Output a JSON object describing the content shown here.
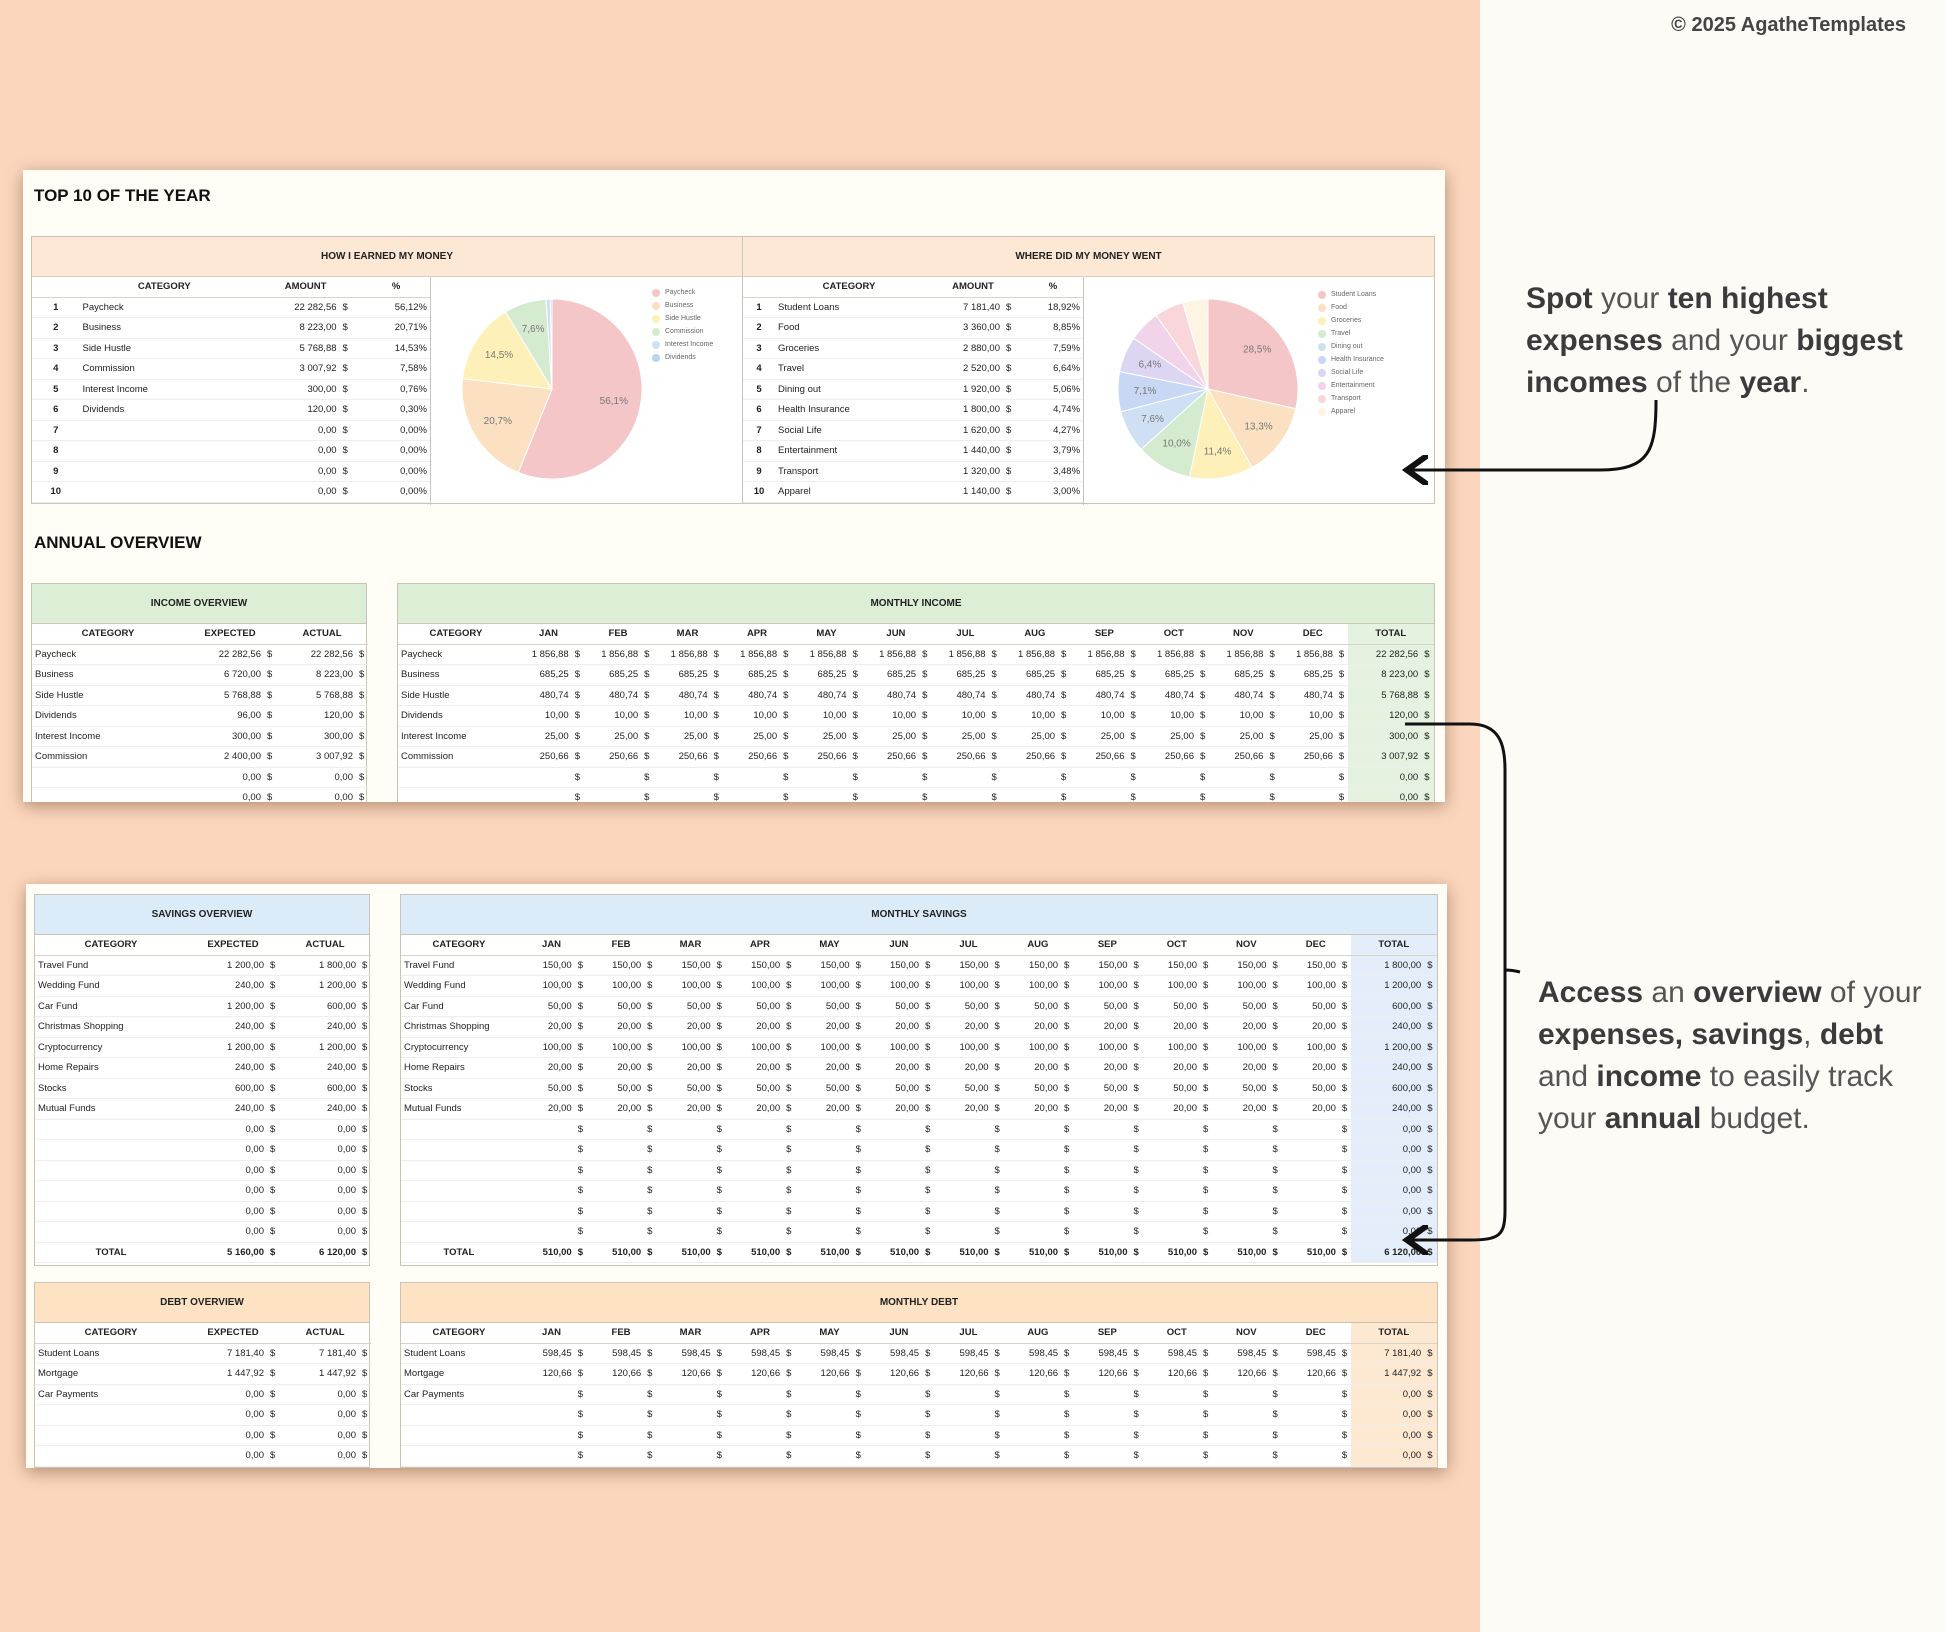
{
  "copyright": "© 2025 AgatheTemplates",
  "colors": {
    "bg_left": "#fbd6bd",
    "income_green": "#dcefd6",
    "savings_blue": "#dcebf8",
    "debt_orange": "#fde3c4",
    "top_orange": "#fde8d6"
  },
  "top10": {
    "title": "TOP 10 OF THE YEAR",
    "earned": {
      "header": "HOW I EARNED MY MONEY",
      "columns": [
        "CATEGORY",
        "AMOUNT",
        "%"
      ],
      "rows": [
        [
          "1",
          "Paycheck",
          "22 282,56",
          "$",
          "56,12%"
        ],
        [
          "2",
          "Business",
          "8 223,00",
          "$",
          "20,71%"
        ],
        [
          "3",
          "Side Hustle",
          "5 768,88",
          "$",
          "14,53%"
        ],
        [
          "4",
          "Commission",
          "3 007,92",
          "$",
          "7,58%"
        ],
        [
          "5",
          "Interest Income",
          "300,00",
          "$",
          "0,76%"
        ],
        [
          "6",
          "Dividends",
          "120,00",
          "$",
          "0,30%"
        ],
        [
          "7",
          "",
          "0,00",
          "$",
          "0,00%"
        ],
        [
          "8",
          "",
          "0,00",
          "$",
          "0,00%"
        ],
        [
          "9",
          "",
          "0,00",
          "$",
          "0,00%"
        ],
        [
          "10",
          "",
          "0,00",
          "$",
          "0,00%"
        ]
      ],
      "pie_labels": [
        "56,1%",
        "20,7%",
        "14,5%",
        "7,6%"
      ],
      "legend": [
        "Paycheck",
        "Business",
        "Side Hustle",
        "Commission",
        "Interest Income",
        "Dividends"
      ]
    },
    "spent": {
      "header": "WHERE DID MY MONEY WENT",
      "columns": [
        "CATEGORY",
        "AMOUNT",
        "%"
      ],
      "rows": [
        [
          "1",
          "Student Loans",
          "7 181,40",
          "$",
          "18,92%"
        ],
        [
          "2",
          "Food",
          "3 360,00",
          "$",
          "8,85%"
        ],
        [
          "3",
          "Groceries",
          "2 880,00",
          "$",
          "7,59%"
        ],
        [
          "4",
          "Travel",
          "2 520,00",
          "$",
          "6,64%"
        ],
        [
          "5",
          "Dining out",
          "1 920,00",
          "$",
          "5,06%"
        ],
        [
          "6",
          "Health Insurance",
          "1 800,00",
          "$",
          "4,74%"
        ],
        [
          "7",
          "Social Life",
          "1 620,00",
          "$",
          "4,27%"
        ],
        [
          "8",
          "Entertainment",
          "1 440,00",
          "$",
          "3,79%"
        ],
        [
          "9",
          "Transport",
          "1 320,00",
          "$",
          "3,48%"
        ],
        [
          "10",
          "Apparel",
          "1 140,00",
          "$",
          "3,00%"
        ]
      ],
      "pie_labels": [
        "28,5%",
        "13,3%",
        "11,4%",
        "10,0%",
        "7,6%",
        "7,1%",
        "6,4%"
      ],
      "legend": [
        "Student Loans",
        "Food",
        "Groceries",
        "Travel",
        "Dining out",
        "Health Insurance",
        "Social Life",
        "Entertainment",
        "Transport",
        "Apparel"
      ]
    }
  },
  "annual": {
    "title": "ANNUAL OVERVIEW",
    "income_overview": {
      "header": "INCOME OVERVIEW",
      "columns": [
        "CATEGORY",
        "EXPECTED",
        "ACTUAL"
      ],
      "rows": [
        [
          "Paycheck",
          "22 282,56",
          "22 282,56"
        ],
        [
          "Business",
          "6 720,00",
          "8 223,00"
        ],
        [
          "Side Hustle",
          "5 768,88",
          "5 768,88"
        ],
        [
          "Dividends",
          "96,00",
          "120,00"
        ],
        [
          "Interest Income",
          "300,00",
          "300,00"
        ],
        [
          "Commission",
          "2 400,00",
          "3 007,92"
        ],
        [
          "",
          "0,00",
          "0,00"
        ],
        [
          "",
          "0,00",
          "0,00"
        ]
      ]
    },
    "monthly_income": {
      "header": "MONTHLY INCOME",
      "columns": [
        "CATEGORY",
        "JAN",
        "FEB",
        "MAR",
        "APR",
        "MAY",
        "JUN",
        "JUL",
        "AUG",
        "SEP",
        "OCT",
        "NOV",
        "DEC",
        "TOTAL"
      ],
      "rows": [
        [
          "Paycheck",
          "1 856,88",
          "1 856,88",
          "1 856,88",
          "1 856,88",
          "1 856,88",
          "1 856,88",
          "1 856,88",
          "1 856,88",
          "1 856,88",
          "1 856,88",
          "1 856,88",
          "1 856,88",
          "22 282,56"
        ],
        [
          "Business",
          "685,25",
          "685,25",
          "685,25",
          "685,25",
          "685,25",
          "685,25",
          "685,25",
          "685,25",
          "685,25",
          "685,25",
          "685,25",
          "685,25",
          "8 223,00"
        ],
        [
          "Side Hustle",
          "480,74",
          "480,74",
          "480,74",
          "480,74",
          "480,74",
          "480,74",
          "480,74",
          "480,74",
          "480,74",
          "480,74",
          "480,74",
          "480,74",
          "5 768,88"
        ],
        [
          "Dividends",
          "10,00",
          "10,00",
          "10,00",
          "10,00",
          "10,00",
          "10,00",
          "10,00",
          "10,00",
          "10,00",
          "10,00",
          "10,00",
          "10,00",
          "120,00"
        ],
        [
          "Interest Income",
          "25,00",
          "25,00",
          "25,00",
          "25,00",
          "25,00",
          "25,00",
          "25,00",
          "25,00",
          "25,00",
          "25,00",
          "25,00",
          "25,00",
          "300,00"
        ],
        [
          "Commission",
          "250,66",
          "250,66",
          "250,66",
          "250,66",
          "250,66",
          "250,66",
          "250,66",
          "250,66",
          "250,66",
          "250,66",
          "250,66",
          "250,66",
          "3 007,92"
        ],
        [
          "",
          "",
          "",
          "",
          "",
          "",
          "",
          "",
          "",
          "",
          "",
          "",
          "",
          "0,00"
        ],
        [
          "",
          "",
          "",
          "",
          "",
          "",
          "",
          "",
          "",
          "",
          "",
          "",
          "",
          "0,00"
        ]
      ]
    },
    "savings_overview": {
      "header": "SAVINGS OVERVIEW",
      "columns": [
        "CATEGORY",
        "EXPECTED",
        "ACTUAL"
      ],
      "rows": [
        [
          "Travel Fund",
          "1 200,00",
          "1 800,00"
        ],
        [
          "Wedding Fund",
          "240,00",
          "1 200,00"
        ],
        [
          "Car Fund",
          "1 200,00",
          "600,00"
        ],
        [
          "Christmas Shopping",
          "240,00",
          "240,00"
        ],
        [
          "Cryptocurrency",
          "1 200,00",
          "1 200,00"
        ],
        [
          "Home Repairs",
          "240,00",
          "240,00"
        ],
        [
          "Stocks",
          "600,00",
          "600,00"
        ],
        [
          "Mutual Funds",
          "240,00",
          "240,00"
        ],
        [
          "",
          "0,00",
          "0,00"
        ],
        [
          "",
          "0,00",
          "0,00"
        ],
        [
          "",
          "0,00",
          "0,00"
        ],
        [
          "",
          "0,00",
          "0,00"
        ],
        [
          "",
          "0,00",
          "0,00"
        ],
        [
          "",
          "0,00",
          "0,00"
        ]
      ],
      "total": [
        "TOTAL",
        "5 160,00",
        "6 120,00"
      ]
    },
    "monthly_savings": {
      "header": "MONTHLY SAVINGS",
      "columns": [
        "CATEGORY",
        "JAN",
        "FEB",
        "MAR",
        "APR",
        "MAY",
        "JUN",
        "JUL",
        "AUG",
        "SEP",
        "OCT",
        "NOV",
        "DEC",
        "TOTAL"
      ],
      "rows": [
        [
          "Travel Fund",
          "150,00",
          "150,00",
          "150,00",
          "150,00",
          "150,00",
          "150,00",
          "150,00",
          "150,00",
          "150,00",
          "150,00",
          "150,00",
          "150,00",
          "1 800,00"
        ],
        [
          "Wedding Fund",
          "100,00",
          "100,00",
          "100,00",
          "100,00",
          "100,00",
          "100,00",
          "100,00",
          "100,00",
          "100,00",
          "100,00",
          "100,00",
          "100,00",
          "1 200,00"
        ],
        [
          "Car Fund",
          "50,00",
          "50,00",
          "50,00",
          "50,00",
          "50,00",
          "50,00",
          "50,00",
          "50,00",
          "50,00",
          "50,00",
          "50,00",
          "50,00",
          "600,00"
        ],
        [
          "Christmas Shopping",
          "20,00",
          "20,00",
          "20,00",
          "20,00",
          "20,00",
          "20,00",
          "20,00",
          "20,00",
          "20,00",
          "20,00",
          "20,00",
          "20,00",
          "240,00"
        ],
        [
          "Cryptocurrency",
          "100,00",
          "100,00",
          "100,00",
          "100,00",
          "100,00",
          "100,00",
          "100,00",
          "100,00",
          "100,00",
          "100,00",
          "100,00",
          "100,00",
          "1 200,00"
        ],
        [
          "Home Repairs",
          "20,00",
          "20,00",
          "20,00",
          "20,00",
          "20,00",
          "20,00",
          "20,00",
          "20,00",
          "20,00",
          "20,00",
          "20,00",
          "20,00",
          "240,00"
        ],
        [
          "Stocks",
          "50,00",
          "50,00",
          "50,00",
          "50,00",
          "50,00",
          "50,00",
          "50,00",
          "50,00",
          "50,00",
          "50,00",
          "50,00",
          "50,00",
          "600,00"
        ],
        [
          "Mutual Funds",
          "20,00",
          "20,00",
          "20,00",
          "20,00",
          "20,00",
          "20,00",
          "20,00",
          "20,00",
          "20,00",
          "20,00",
          "20,00",
          "20,00",
          "240,00"
        ],
        [
          "",
          "",
          "",
          "",
          "",
          "",
          "",
          "",
          "",
          "",
          "",
          "",
          "",
          "0,00"
        ],
        [
          "",
          "",
          "",
          "",
          "",
          "",
          "",
          "",
          "",
          "",
          "",
          "",
          "",
          "0,00"
        ],
        [
          "",
          "",
          "",
          "",
          "",
          "",
          "",
          "",
          "",
          "",
          "",
          "",
          "",
          "0,00"
        ],
        [
          "",
          "",
          "",
          "",
          "",
          "",
          "",
          "",
          "",
          "",
          "",
          "",
          "",
          "0,00"
        ],
        [
          "",
          "",
          "",
          "",
          "",
          "",
          "",
          "",
          "",
          "",
          "",
          "",
          "",
          "0,00"
        ],
        [
          "",
          "",
          "",
          "",
          "",
          "",
          "",
          "",
          "",
          "",
          "",
          "",
          "",
          "0,00"
        ]
      ],
      "total": [
        "TOTAL",
        "510,00",
        "510,00",
        "510,00",
        "510,00",
        "510,00",
        "510,00",
        "510,00",
        "510,00",
        "510,00",
        "510,00",
        "510,00",
        "510,00",
        "6 120,00"
      ]
    },
    "debt_overview": {
      "header": "DEBT OVERVIEW",
      "columns": [
        "CATEGORY",
        "EXPECTED",
        "ACTUAL"
      ],
      "rows": [
        [
          "Student Loans",
          "7 181,40",
          "7 181,40"
        ],
        [
          "Mortgage",
          "1 447,92",
          "1 447,92"
        ],
        [
          "Car Payments",
          "0,00",
          "0,00"
        ],
        [
          "",
          "0,00",
          "0,00"
        ],
        [
          "",
          "0,00",
          "0,00"
        ],
        [
          "",
          "0,00",
          "0,00"
        ]
      ]
    },
    "monthly_debt": {
      "header": "MONTHLY DEBT",
      "columns": [
        "CATEGORY",
        "JAN",
        "FEB",
        "MAR",
        "APR",
        "MAY",
        "JUN",
        "JUL",
        "AUG",
        "SEP",
        "OCT",
        "NOV",
        "DEC",
        "TOTAL"
      ],
      "rows": [
        [
          "Student Loans",
          "598,45",
          "598,45",
          "598,45",
          "598,45",
          "598,45",
          "598,45",
          "598,45",
          "598,45",
          "598,45",
          "598,45",
          "598,45",
          "598,45",
          "7 181,40"
        ],
        [
          "Mortgage",
          "120,66",
          "120,66",
          "120,66",
          "120,66",
          "120,66",
          "120,66",
          "120,66",
          "120,66",
          "120,66",
          "120,66",
          "120,66",
          "120,66",
          "1 447,92"
        ],
        [
          "Car Payments",
          "",
          "",
          "",
          "",
          "",
          "",
          "",
          "",
          "",
          "",
          "",
          "",
          "0,00"
        ],
        [
          "",
          "",
          "",
          "",
          "",
          "",
          "",
          "",
          "",
          "",
          "",
          "",
          "",
          "0,00"
        ],
        [
          "",
          "",
          "",
          "",
          "",
          "",
          "",
          "",
          "",
          "",
          "",
          "",
          "",
          "0,00"
        ],
        [
          "",
          "",
          "",
          "",
          "",
          "",
          "",
          "",
          "",
          "",
          "",
          "",
          "",
          "0,00"
        ]
      ]
    }
  },
  "callouts": {
    "top": [
      {
        "t": "Spot",
        "b": true
      },
      {
        "t": " your ",
        "b": false
      },
      {
        "t": "ten highest expenses",
        "b": true
      },
      {
        "t": " and your ",
        "b": false
      },
      {
        "t": "biggest incomes",
        "b": true
      },
      {
        "t": " of the ",
        "b": false
      },
      {
        "t": "year",
        "b": true
      },
      {
        "t": ".",
        "b": false
      }
    ],
    "bottom": [
      {
        "t": "Access",
        "b": true
      },
      {
        "t": " an ",
        "b": false
      },
      {
        "t": "overview",
        "b": true
      },
      {
        "t": " of your ",
        "b": false
      },
      {
        "t": "expenses, savings",
        "b": true
      },
      {
        "t": ", ",
        "b": false
      },
      {
        "t": "debt",
        "b": true
      },
      {
        "t": " and ",
        "b": false
      },
      {
        "t": "income",
        "b": true
      },
      {
        "t": " to easily track your ",
        "b": false
      },
      {
        "t": "annual",
        "b": true
      },
      {
        "t": " budget.",
        "b": false
      }
    ]
  }
}
